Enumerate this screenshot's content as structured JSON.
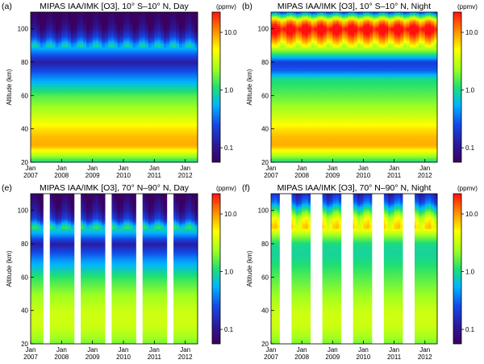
{
  "figure": {
    "panels": [
      {
        "letter": "(a)",
        "title": "MIPAS IAA/IMK [O3], 10° S–10° N, Day",
        "colorbar_label": "(ppmv)"
      },
      {
        "letter": "(b)",
        "title": "MIPAS IAA/IMK [O3], 10° S–10° N, Night",
        "colorbar_label": "(ppmv)"
      },
      {
        "letter": "(e)",
        "title": "MIPAS IAA/IMK [O3], 70° N–90° N, Day",
        "colorbar_label": "(ppmv)"
      },
      {
        "letter": "(f)",
        "title": "MIPAS IAA/IMK [O3], 70° N–90° N, Night",
        "colorbar_label": "(ppmv)"
      }
    ]
  },
  "chart_data": [
    {
      "type": "heatmap",
      "title": "MIPAS IAA/IMK [O3], 10° S–10° N, Day",
      "ylabel": "Altitude (km)",
      "colorbar_label": "(ppmv)",
      "colorbar_scale": "log",
      "colorbar_ticks": [
        "0.1",
        "1.0",
        "10.0"
      ],
      "x_ticks": [
        "Jan\n2007",
        "Jan\n2008",
        "Jan\n2009",
        "Jan\n2010",
        "Jan\n2011",
        "Jan\n2012"
      ],
      "y_ticks": [
        "20",
        "40",
        "60",
        "80",
        "100"
      ],
      "ylim": [
        20,
        110
      ],
      "profile_altitude_km": [
        20,
        25,
        30,
        35,
        40,
        50,
        60,
        70,
        75,
        80,
        85,
        90,
        95,
        100,
        105,
        110
      ],
      "profile_o3_ppmv": [
        0.9,
        3.2,
        8.5,
        8.0,
        6.0,
        2.8,
        1.5,
        0.45,
        0.25,
        0.12,
        0.3,
        0.7,
        0.2,
        0.09,
        0.06,
        0.05
      ],
      "data_gaps": []
    },
    {
      "type": "heatmap",
      "title": "MIPAS IAA/IMK [O3], 10° S–10° N, Night",
      "ylabel": "Altitude (km)",
      "colorbar_label": "(ppmv)",
      "colorbar_scale": "log",
      "colorbar_ticks": [
        "0.1",
        "1.0",
        "10.0"
      ],
      "x_ticks": [
        "Jan\n2007",
        "Jan\n2008",
        "Jan\n2009",
        "Jan\n2010",
        "Jan\n2011",
        "Jan\n2012"
      ],
      "y_ticks": [
        "20",
        "40",
        "60",
        "80",
        "100"
      ],
      "ylim": [
        20,
        110
      ],
      "profile_altitude_km": [
        20,
        25,
        30,
        35,
        40,
        50,
        60,
        70,
        75,
        80,
        85,
        90,
        95,
        100,
        105,
        110
      ],
      "profile_o3_ppmv": [
        0.9,
        3.2,
        8.5,
        8.0,
        6.0,
        2.8,
        1.6,
        1.0,
        0.3,
        0.2,
        1.2,
        4.0,
        12.0,
        30.0,
        8.0,
        0.3
      ],
      "data_gaps": []
    },
    {
      "type": "heatmap",
      "title": "MIPAS IAA/IMK [O3], 70° N–90° N, Day",
      "ylabel": "Altitude (km)",
      "colorbar_label": "(ppmv)",
      "colorbar_scale": "log",
      "colorbar_ticks": [
        "0.1",
        "1.0",
        "10.0"
      ],
      "x_ticks": [
        "Jan\n2007",
        "Jan\n2008",
        "Jan\n2009",
        "Jan\n2010",
        "Jan\n2011",
        "Jan\n2012"
      ],
      "y_ticks": [
        "20",
        "40",
        "60",
        "80",
        "100"
      ],
      "ylim": [
        20,
        110
      ],
      "profile_altitude_km": [
        20,
        25,
        30,
        35,
        40,
        50,
        60,
        70,
        75,
        80,
        85,
        90,
        95,
        100,
        105,
        110
      ],
      "profile_o3_ppmv": [
        1.8,
        2.5,
        3.2,
        3.4,
        3.2,
        2.2,
        1.2,
        0.45,
        0.25,
        0.12,
        0.4,
        1.0,
        0.2,
        0.1,
        0.07,
        0.05
      ],
      "data_gaps": [
        [
          "2007-06-01",
          "2007-08-15"
        ],
        [
          "2008-06-01",
          "2008-08-15"
        ],
        [
          "2009-06-01",
          "2009-08-15"
        ],
        [
          "2010-06-01",
          "2010-08-15"
        ],
        [
          "2011-06-01",
          "2011-08-15"
        ]
      ]
    },
    {
      "type": "heatmap",
      "title": "MIPAS IAA/IMK [O3], 70° N–90° N, Night",
      "ylabel": "Altitude (km)",
      "colorbar_label": "(ppmv)",
      "colorbar_scale": "log",
      "colorbar_ticks": [
        "0.1",
        "1.0",
        "10.0"
      ],
      "x_ticks": [
        "Jan\n2007",
        "Jan\n2008",
        "Jan\n2009",
        "Jan\n2010",
        "Jan\n2011",
        "Jan\n2012"
      ],
      "y_ticks": [
        "20",
        "40",
        "60",
        "80",
        "100"
      ],
      "ylim": [
        20,
        110
      ],
      "profile_altitude_km": [
        20,
        25,
        30,
        35,
        40,
        50,
        60,
        70,
        75,
        80,
        85,
        90,
        95,
        100,
        105,
        110
      ],
      "profile_o3_ppmv": [
        1.8,
        2.5,
        3.2,
        3.4,
        3.2,
        2.2,
        1.5,
        1.0,
        0.9,
        1.0,
        2.2,
        6.0,
        4.0,
        1.2,
        0.3,
        0.15
      ],
      "data_gaps": [
        [
          "2007-04-15",
          "2007-09-01"
        ],
        [
          "2008-04-15",
          "2008-09-01"
        ],
        [
          "2009-04-15",
          "2009-09-01"
        ],
        [
          "2010-04-15",
          "2010-09-01"
        ],
        [
          "2011-04-15",
          "2011-09-01"
        ]
      ]
    }
  ]
}
